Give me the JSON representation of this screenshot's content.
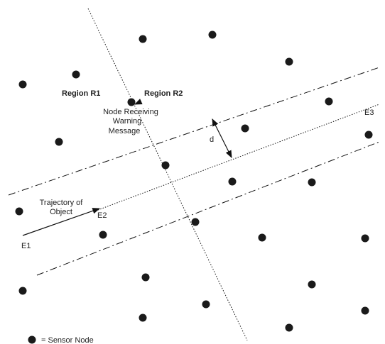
{
  "diagram": {
    "regions": {
      "r1": "Region R1",
      "r2": "Region R2"
    },
    "node_receiving": [
      "Node Receiving",
      "Warning",
      "Message"
    ],
    "distance_label": "d",
    "trajectory_label": [
      "Trajectory of",
      "Object"
    ],
    "points": {
      "e1": "E1",
      "e2": "E2",
      "e3": "E3"
    },
    "legend": {
      "text": "= Sensor Node"
    },
    "colors": {
      "ink": "#111111",
      "node": "#1a1a1a"
    }
  }
}
